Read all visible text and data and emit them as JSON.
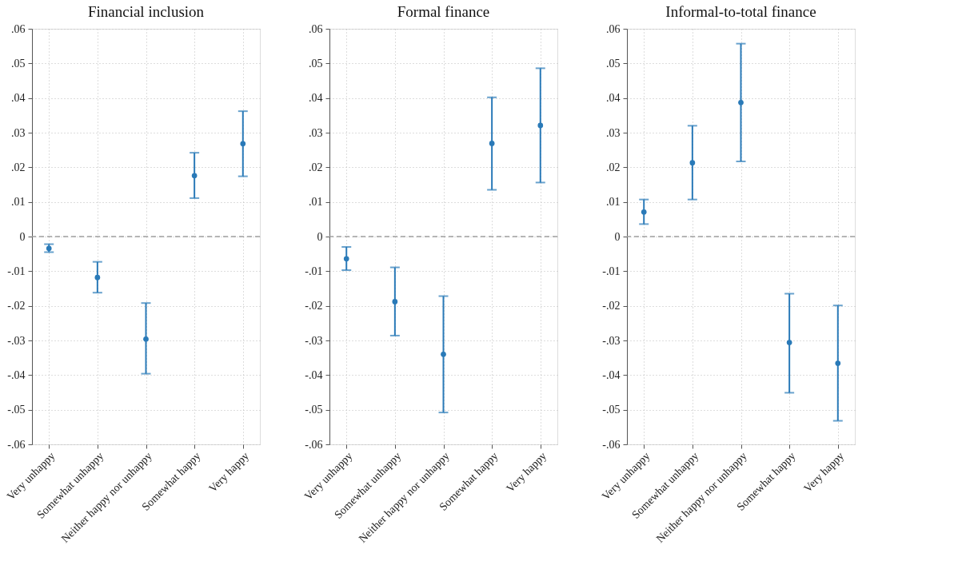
{
  "chart_data": [
    {
      "type": "scatter",
      "title": "Financial inclusion",
      "categories": [
        "Very unhappy",
        "Somewhat unhappy",
        "Neither happy nor unhappy",
        "Somewhat happy",
        "Very happy"
      ],
      "color": "#2a7ab8",
      "marker": "circle",
      "grid": true,
      "values": [
        -0.0034,
        -0.0118,
        -0.0296,
        0.0176,
        0.0268
      ],
      "errors": [
        [
          -0.0045,
          -0.0022
        ],
        [
          -0.0162,
          -0.0073
        ],
        [
          -0.0396,
          -0.0192
        ],
        [
          0.0111,
          0.0242
        ],
        [
          0.0174,
          0.0362
        ]
      ],
      "ylim": [
        -0.06,
        0.06
      ],
      "yticks": [
        {
          "value": -0.06,
          "label": "-.06"
        },
        {
          "value": -0.05,
          "label": "-.05"
        },
        {
          "value": -0.04,
          "label": "-.04"
        },
        {
          "value": -0.03,
          "label": "-.03"
        },
        {
          "value": -0.02,
          "label": "-.02"
        },
        {
          "value": -0.01,
          "label": "-.01"
        },
        0,
        {
          "value": 0.01,
          "label": ".01"
        },
        {
          "value": 0.02,
          "label": ".02"
        },
        {
          "value": 0.03,
          "label": ".03"
        },
        {
          "value": 0.04,
          "label": ".04"
        },
        {
          "value": 0.05,
          "label": ".05"
        },
        {
          "value": 0.06,
          "label": ".06"
        }
      ],
      "ref_lines": [
        {
          "axis": "y",
          "value": 0,
          "color": "#a0a0a0",
          "line_style": "dashed"
        }
      ]
    },
    {
      "type": "scatter",
      "title": "Formal finance",
      "categories": [
        "Very unhappy",
        "Somewhat unhappy",
        "Neither happy nor unhappy",
        "Somewhat happy",
        "Very happy"
      ],
      "color": "#2a7ab8",
      "marker": "circle",
      "grid": true,
      "values": [
        -0.0064,
        -0.0188,
        -0.034,
        0.0269,
        0.0321
      ],
      "errors": [
        [
          -0.0097,
          -0.003
        ],
        [
          -0.0286,
          -0.0089
        ],
        [
          -0.0508,
          -0.0172
        ],
        [
          0.0135,
          0.0402
        ],
        [
          0.0156,
          0.0486
        ]
      ],
      "ylim": [
        -0.06,
        0.06
      ],
      "yticks": [
        {
          "value": -0.06,
          "label": "-.06"
        },
        {
          "value": -0.05,
          "label": "-.05"
        },
        {
          "value": -0.04,
          "label": "-.04"
        },
        {
          "value": -0.03,
          "label": "-.03"
        },
        {
          "value": -0.02,
          "label": "-.02"
        },
        {
          "value": -0.01,
          "label": "-.01"
        },
        0,
        {
          "value": 0.01,
          "label": ".01"
        },
        {
          "value": 0.02,
          "label": ".02"
        },
        {
          "value": 0.03,
          "label": ".03"
        },
        {
          "value": 0.04,
          "label": ".04"
        },
        {
          "value": 0.05,
          "label": ".05"
        },
        {
          "value": 0.06,
          "label": ".06"
        }
      ],
      "ref_lines": [
        {
          "axis": "y",
          "value": 0,
          "color": "#a0a0a0",
          "line_style": "dashed"
        }
      ]
    },
    {
      "type": "scatter",
      "title": "Informal-to-total finance",
      "categories": [
        "Very unhappy",
        "Somewhat unhappy",
        "Neither happy nor unhappy",
        "Somewhat happy",
        "Very happy"
      ],
      "color": "#2a7ab8",
      "marker": "circle",
      "grid": true,
      "values": [
        0.0071,
        0.0213,
        0.0387,
        -0.0306,
        -0.0366
      ],
      "errors": [
        [
          0.0036,
          0.0107
        ],
        [
          0.0107,
          0.032
        ],
        [
          0.0217,
          0.0557
        ],
        [
          -0.0451,
          -0.0165
        ],
        [
          -0.0532,
          -0.0199
        ]
      ],
      "ylim": [
        -0.06,
        0.06
      ],
      "yticks": [
        {
          "value": -0.06,
          "label": "-.06"
        },
        {
          "value": -0.05,
          "label": "-.05"
        },
        {
          "value": -0.04,
          "label": "-.04"
        },
        {
          "value": -0.03,
          "label": "-.03"
        },
        {
          "value": -0.02,
          "label": "-.02"
        },
        {
          "value": -0.01,
          "label": "-.01"
        },
        0,
        {
          "value": 0.01,
          "label": ".01"
        },
        {
          "value": 0.02,
          "label": ".02"
        },
        {
          "value": 0.03,
          "label": ".03"
        },
        {
          "value": 0.04,
          "label": ".04"
        },
        {
          "value": 0.05,
          "label": ".05"
        },
        {
          "value": 0.06,
          "label": ".06"
        }
      ],
      "ref_lines": [
        {
          "axis": "y",
          "value": 0,
          "color": "#a0a0a0",
          "line_style": "dashed"
        }
      ]
    }
  ]
}
